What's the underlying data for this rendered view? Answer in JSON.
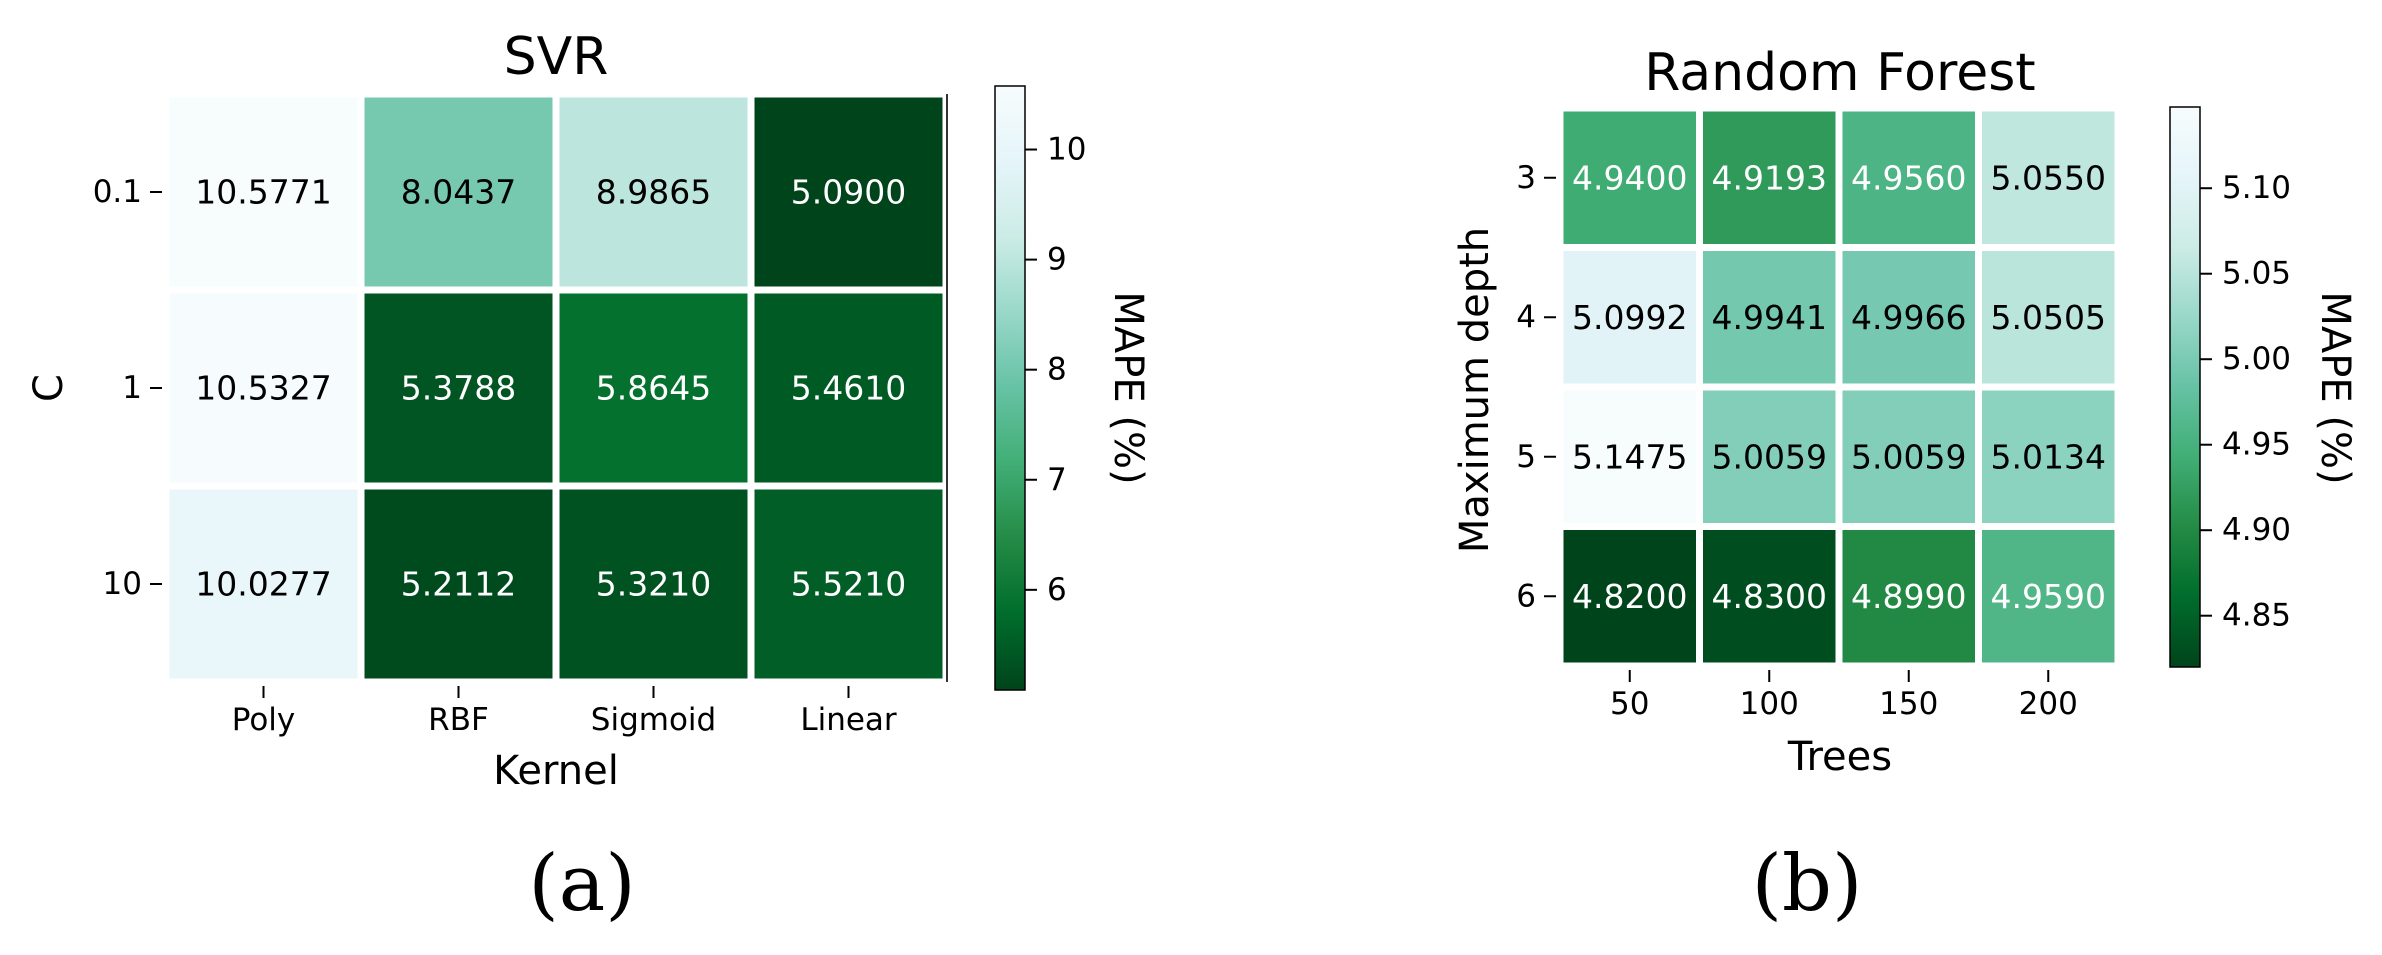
{
  "chart_data": [
    {
      "type": "heatmap",
      "title": "SVR",
      "xlabel": "Kernel",
      "ylabel": "C",
      "x_categories": [
        "Poly",
        "RBF",
        "Sigmoid",
        "Linear"
      ],
      "y_categories": [
        "0.1",
        "1",
        "10"
      ],
      "values": [
        [
          10.5771,
          8.0437,
          8.9865,
          5.09
        ],
        [
          10.5327,
          5.3788,
          5.8645,
          5.461
        ],
        [
          10.0277,
          5.2112,
          5.321,
          5.521
        ]
      ],
      "value_labels": [
        [
          "10.5771",
          "8.0437",
          "8.9865",
          "5.0900"
        ],
        [
          "10.5327",
          "5.3788",
          "5.8645",
          "5.4610"
        ],
        [
          "10.0277",
          "5.2112",
          "5.3210",
          "5.5210"
        ]
      ],
      "colorbar": {
        "label": "MAPE (%)",
        "min": 5.09,
        "max": 10.5771,
        "ticks": [
          6,
          7,
          8,
          9,
          10
        ],
        "tick_labels": [
          "6",
          "7",
          "8",
          "9",
          "10"
        ]
      },
      "colormap": "BuGn",
      "panel_label": "(a)"
    },
    {
      "type": "heatmap",
      "title": "Random Forest",
      "xlabel": "Trees",
      "ylabel": "Maximum depth",
      "x_categories": [
        "50",
        "100",
        "150",
        "200"
      ],
      "y_categories": [
        "3",
        "4",
        "5",
        "6"
      ],
      "values": [
        [
          4.94,
          4.9193,
          4.956,
          5.055
        ],
        [
          5.0992,
          4.9941,
          4.9966,
          5.0505
        ],
        [
          5.1475,
          5.0059,
          5.0059,
          5.0134
        ],
        [
          4.82,
          4.83,
          4.899,
          4.959
        ]
      ],
      "value_labels": [
        [
          "4.9400",
          "4.9193",
          "4.9560",
          "5.0550"
        ],
        [
          "5.0992",
          "4.9941",
          "4.9966",
          "5.0505"
        ],
        [
          "5.1475",
          "5.0059",
          "5.0059",
          "5.0134"
        ],
        [
          "4.8200",
          "4.8300",
          "4.8990",
          "4.9590"
        ]
      ],
      "colorbar": {
        "label": "MAPE (%)",
        "min": 4.82,
        "max": 5.1475,
        "ticks": [
          4.85,
          4.9,
          4.95,
          5.0,
          5.05,
          5.1
        ],
        "tick_labels": [
          "4.85",
          "4.90",
          "4.95",
          "5.00",
          "5.05",
          "5.10"
        ]
      },
      "colormap": "BuGn",
      "panel_label": "(b)"
    }
  ],
  "colors": {
    "bugn_scale": [
      "#00441b",
      "#006d2c",
      "#238b45",
      "#41ae76",
      "#66c2a4",
      "#99d8c9",
      "#ccece6",
      "#e5f5f9",
      "#f7fcfd"
    ],
    "grid_line": "#ffffff",
    "text_dark": "#000000",
    "text_light": "#ffffff"
  }
}
